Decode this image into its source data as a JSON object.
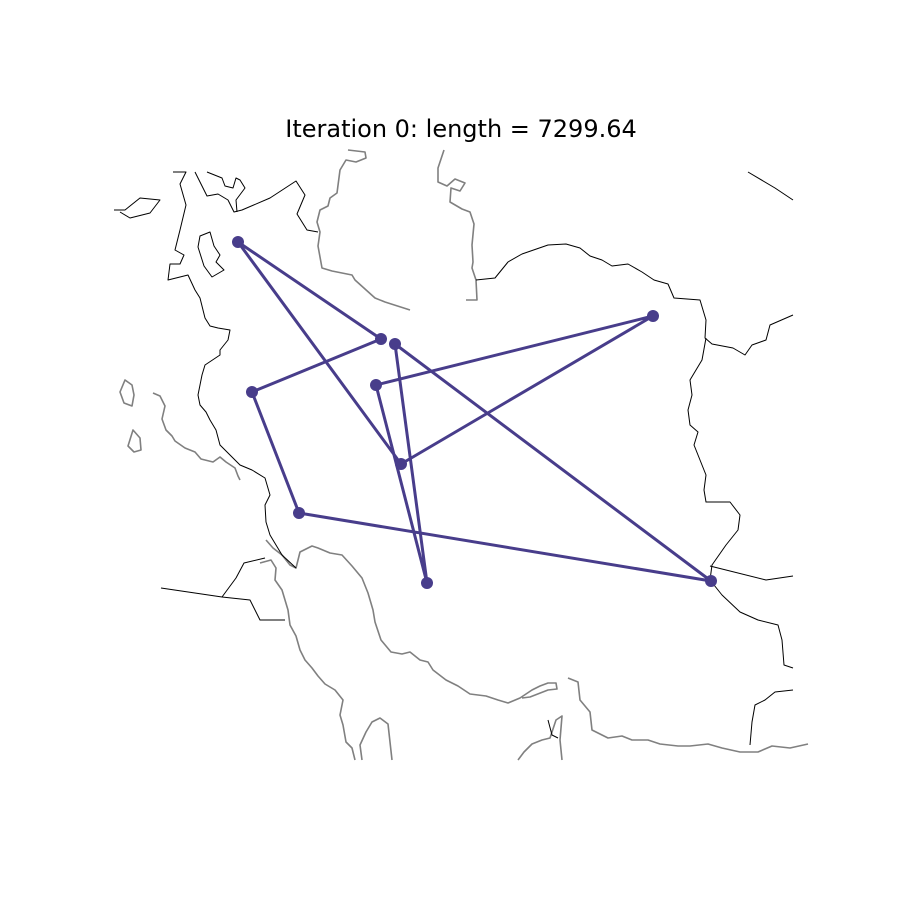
{
  "title": "Iteration 0: length = 7299.64",
  "route_color": "#483D8B",
  "coast_color": "#808080",
  "border_color": "#000000"
}
